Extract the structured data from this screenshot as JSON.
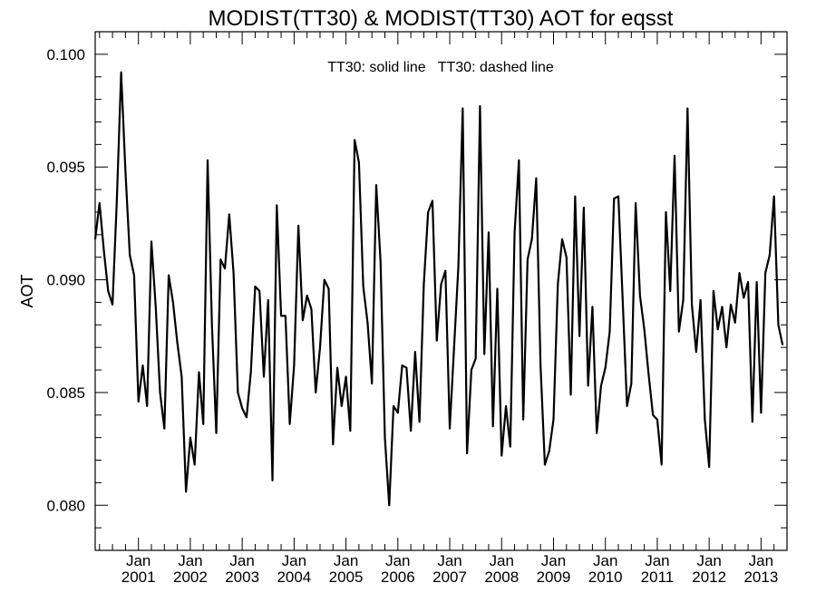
{
  "chart_data": {
    "type": "line",
    "title": "MODIST(TT30) & MODIST(TT30)  AOT for eqsst",
    "xlabel": "",
    "ylabel": "AOT",
    "legend": {
      "text": "TT30: solid line   TT30: dashed line",
      "placement": "top-center"
    },
    "ylim": [
      0.078,
      0.101
    ],
    "yticks": [
      0.08,
      0.085,
      0.09,
      0.095,
      0.1
    ],
    "ytick_labels": [
      "0.080",
      "0.085",
      "0.090",
      "0.095",
      "0.100"
    ],
    "x_start": "2000-03",
    "x_end": "2013-07",
    "xticks": [
      {
        "date": "2001-01",
        "line1": "Jan",
        "line2": "2001"
      },
      {
        "date": "2002-01",
        "line1": "Jan",
        "line2": "2002"
      },
      {
        "date": "2003-01",
        "line1": "Jan",
        "line2": "2003"
      },
      {
        "date": "2004-01",
        "line1": "Jan",
        "line2": "2004"
      },
      {
        "date": "2005-01",
        "line1": "Jan",
        "line2": "2005"
      },
      {
        "date": "2006-01",
        "line1": "Jan",
        "line2": "2006"
      },
      {
        "date": "2007-01",
        "line1": "Jan",
        "line2": "2007"
      },
      {
        "date": "2008-01",
        "line1": "Jan",
        "line2": "2008"
      },
      {
        "date": "2009-01",
        "line1": "Jan",
        "line2": "2009"
      },
      {
        "date": "2010-01",
        "line1": "Jan",
        "line2": "2010"
      },
      {
        "date": "2011-01",
        "line1": "Jan",
        "line2": "2011"
      },
      {
        "date": "2012-01",
        "line1": "Jan",
        "line2": "2012"
      },
      {
        "date": "2013-01",
        "line1": "Jan",
        "line2": "2013"
      }
    ],
    "series": [
      {
        "style": "solid",
        "color": "#000000",
        "points": [
          [
            "2000-03",
            0.0918
          ],
          [
            "2000-04",
            0.0934
          ],
          [
            "2000-05",
            0.0913
          ],
          [
            "2000-06",
            0.0895
          ],
          [
            "2000-07",
            0.0889
          ],
          [
            "2000-08",
            0.0935
          ],
          [
            "2000-09",
            0.0992
          ],
          [
            "2000-10",
            0.0948
          ],
          [
            "2000-11",
            0.0911
          ],
          [
            "2000-12",
            0.0902
          ],
          [
            "2001-01",
            0.0846
          ],
          [
            "2001-02",
            0.0862
          ],
          [
            "2001-03",
            0.0844
          ],
          [
            "2001-04",
            0.0917
          ],
          [
            "2001-05",
            0.0888
          ],
          [
            "2001-06",
            0.085
          ],
          [
            "2001-07",
            0.0834
          ],
          [
            "2001-08",
            0.0902
          ],
          [
            "2001-09",
            0.089
          ],
          [
            "2001-10",
            0.0872
          ],
          [
            "2001-11",
            0.0857
          ],
          [
            "2001-12",
            0.0806
          ],
          [
            "2002-01",
            0.083
          ],
          [
            "2002-02",
            0.0818
          ],
          [
            "2002-03",
            0.0859
          ],
          [
            "2002-04",
            0.0836
          ],
          [
            "2002-05",
            0.0953
          ],
          [
            "2002-06",
            0.088
          ],
          [
            "2002-07",
            0.0832
          ],
          [
            "2002-08",
            0.0909
          ],
          [
            "2002-09",
            0.0905
          ],
          [
            "2002-10",
            0.0929
          ],
          [
            "2002-11",
            0.0903
          ],
          [
            "2002-12",
            0.085
          ],
          [
            "2003-01",
            0.0843
          ],
          [
            "2003-02",
            0.0839
          ],
          [
            "2003-03",
            0.0859
          ],
          [
            "2003-04",
            0.0897
          ],
          [
            "2003-05",
            0.0895
          ],
          [
            "2003-06",
            0.0857
          ],
          [
            "2003-07",
            0.0891
          ],
          [
            "2003-08",
            0.0811
          ],
          [
            "2003-09",
            0.0933
          ],
          [
            "2003-10",
            0.0884
          ],
          [
            "2003-11",
            0.0884
          ],
          [
            "2003-12",
            0.0836
          ],
          [
            "2004-01",
            0.0862
          ],
          [
            "2004-02",
            0.0924
          ],
          [
            "2004-03",
            0.0882
          ],
          [
            "2004-04",
            0.0893
          ],
          [
            "2004-05",
            0.0887
          ],
          [
            "2004-06",
            0.085
          ],
          [
            "2004-07",
            0.087
          ],
          [
            "2004-08",
            0.09
          ],
          [
            "2004-09",
            0.0896
          ],
          [
            "2004-10",
            0.0827
          ],
          [
            "2004-11",
            0.0861
          ],
          [
            "2004-12",
            0.0844
          ],
          [
            "2005-01",
            0.0857
          ],
          [
            "2005-02",
            0.0833
          ],
          [
            "2005-03",
            0.0962
          ],
          [
            "2005-04",
            0.0952
          ],
          [
            "2005-05",
            0.0897
          ],
          [
            "2005-06",
            0.0881
          ],
          [
            "2005-07",
            0.0854
          ],
          [
            "2005-08",
            0.0942
          ],
          [
            "2005-09",
            0.0908
          ],
          [
            "2005-10",
            0.083
          ],
          [
            "2005-11",
            0.08
          ],
          [
            "2005-12",
            0.0844
          ],
          [
            "2006-01",
            0.0841
          ],
          [
            "2006-02",
            0.0862
          ],
          [
            "2006-03",
            0.0861
          ],
          [
            "2006-04",
            0.0833
          ],
          [
            "2006-05",
            0.0868
          ],
          [
            "2006-06",
            0.0837
          ],
          [
            "2006-07",
            0.0898
          ],
          [
            "2006-08",
            0.093
          ],
          [
            "2006-09",
            0.0935
          ],
          [
            "2006-10",
            0.0873
          ],
          [
            "2006-11",
            0.0898
          ],
          [
            "2006-12",
            0.0904
          ],
          [
            "2007-01",
            0.0834
          ],
          [
            "2007-02",
            0.087
          ],
          [
            "2007-03",
            0.0906
          ],
          [
            "2007-04",
            0.0976
          ],
          [
            "2007-05",
            0.0823
          ],
          [
            "2007-06",
            0.086
          ],
          [
            "2007-07",
            0.0865
          ],
          [
            "2007-08",
            0.0977
          ],
          [
            "2007-09",
            0.0867
          ],
          [
            "2007-10",
            0.0921
          ],
          [
            "2007-11",
            0.0835
          ],
          [
            "2007-12",
            0.0896
          ],
          [
            "2008-01",
            0.0822
          ],
          [
            "2008-02",
            0.0844
          ],
          [
            "2008-03",
            0.0826
          ],
          [
            "2008-04",
            0.0921
          ],
          [
            "2008-05",
            0.0953
          ],
          [
            "2008-06",
            0.0838
          ],
          [
            "2008-07",
            0.0909
          ],
          [
            "2008-08",
            0.0918
          ],
          [
            "2008-09",
            0.0945
          ],
          [
            "2008-10",
            0.0862
          ],
          [
            "2008-11",
            0.0818
          ],
          [
            "2008-12",
            0.0824
          ],
          [
            "2009-01",
            0.0838
          ],
          [
            "2009-02",
            0.0898
          ],
          [
            "2009-03",
            0.0918
          ],
          [
            "2009-04",
            0.091
          ],
          [
            "2009-05",
            0.0849
          ],
          [
            "2009-06",
            0.0937
          ],
          [
            "2009-07",
            0.0875
          ],
          [
            "2009-08",
            0.0932
          ],
          [
            "2009-09",
            0.0853
          ],
          [
            "2009-10",
            0.0888
          ],
          [
            "2009-11",
            0.0832
          ],
          [
            "2009-12",
            0.0853
          ],
          [
            "2010-01",
            0.0861
          ],
          [
            "2010-02",
            0.0877
          ],
          [
            "2010-03",
            0.0936
          ],
          [
            "2010-04",
            0.0937
          ],
          [
            "2010-05",
            0.0891
          ],
          [
            "2010-06",
            0.0844
          ],
          [
            "2010-07",
            0.0854
          ],
          [
            "2010-08",
            0.0934
          ],
          [
            "2010-09",
            0.0893
          ],
          [
            "2010-10",
            0.0878
          ],
          [
            "2010-11",
            0.0858
          ],
          [
            "2010-12",
            0.084
          ],
          [
            "2011-01",
            0.0838
          ],
          [
            "2011-02",
            0.0818
          ],
          [
            "2011-03",
            0.093
          ],
          [
            "2011-04",
            0.0895
          ],
          [
            "2011-05",
            0.0955
          ],
          [
            "2011-06",
            0.0877
          ],
          [
            "2011-07",
            0.0891
          ],
          [
            "2011-08",
            0.0976
          ],
          [
            "2011-09",
            0.0889
          ],
          [
            "2011-10",
            0.0868
          ],
          [
            "2011-11",
            0.0891
          ],
          [
            "2011-12",
            0.0838
          ],
          [
            "2012-01",
            0.0817
          ],
          [
            "2012-02",
            0.0895
          ],
          [
            "2012-03",
            0.0878
          ],
          [
            "2012-04",
            0.0888
          ],
          [
            "2012-05",
            0.087
          ],
          [
            "2012-06",
            0.0889
          ],
          [
            "2012-07",
            0.0881
          ],
          [
            "2012-08",
            0.0903
          ],
          [
            "2012-09",
            0.0892
          ],
          [
            "2012-10",
            0.0899
          ],
          [
            "2012-11",
            0.0837
          ],
          [
            "2012-12",
            0.0899
          ],
          [
            "2013-01",
            0.0841
          ],
          [
            "2013-02",
            0.0903
          ],
          [
            "2013-03",
            0.0911
          ],
          [
            "2013-04",
            0.0937
          ],
          [
            "2013-05",
            0.088
          ],
          [
            "2013-06",
            0.0871
          ]
        ]
      }
    ]
  }
}
